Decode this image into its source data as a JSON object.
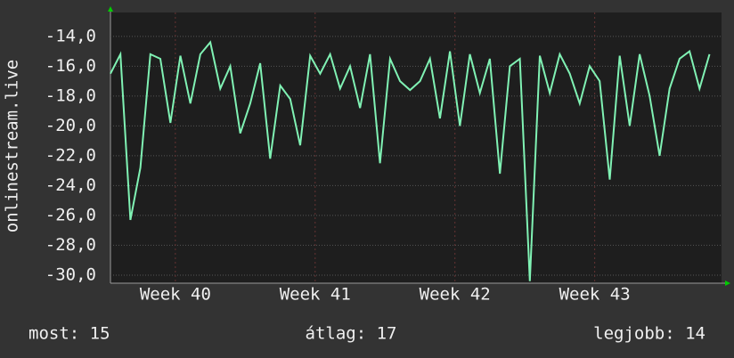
{
  "chart_data": {
    "type": "line",
    "y_label": "onlinestream.live",
    "x": [
      0,
      0.5,
      1,
      1.5,
      2,
      2.5,
      3,
      3.5,
      4,
      4.5,
      5,
      5.5,
      6,
      6.5,
      7,
      7.5,
      8,
      8.5,
      9,
      9.5,
      10,
      10.5,
      11,
      11.5,
      12,
      12.5,
      13,
      13.5,
      14,
      14.5,
      15,
      15.5,
      16,
      16.5,
      17,
      17.5,
      18,
      18.5,
      19,
      19.5,
      20,
      20.5,
      21,
      21.5,
      22,
      22.5,
      23,
      23.5,
      24,
      24.5,
      25,
      25.5,
      26,
      26.5,
      27,
      27.5,
      28,
      28.5,
      29,
      29.5,
      30
    ],
    "values": [
      -16.5,
      -15.2,
      -26.3,
      -22.8,
      -15.2,
      -15.5,
      -19.8,
      -15.3,
      -18.5,
      -15.2,
      -14.4,
      -17.5,
      -16.0,
      -20.5,
      -18.5,
      -15.8,
      -22.2,
      -17.3,
      -18.2,
      -21.3,
      -15.3,
      -16.5,
      -15.2,
      -17.5,
      -16.0,
      -18.8,
      -15.2,
      -22.5,
      -15.5,
      -17.0,
      -17.6,
      -17.0,
      -15.5,
      -19.5,
      -15.0,
      -20.0,
      -15.2,
      -17.8,
      -15.5,
      -23.2,
      -16.0,
      -15.5,
      -30.4,
      -15.3,
      -17.8,
      -15.2,
      -16.5,
      -18.5,
      -16.0,
      -17.0,
      -23.6,
      -15.3,
      -20.0,
      -15.2,
      -18.0,
      -22.0,
      -17.5,
      -15.5,
      -15.0,
      -17.5,
      -15.2
    ],
    "color": "#80f2b4",
    "xlim": [
      0,
      30.6
    ],
    "xticks": [
      {
        "value": 3.25,
        "label": "Week 40"
      },
      {
        "value": 10.25,
        "label": "Week 41"
      },
      {
        "value": 17.25,
        "label": "Week 42"
      },
      {
        "value": 24.25,
        "label": "Week 43"
      }
    ],
    "ylim": [
      -30.54,
      -12.4
    ],
    "yticks": [
      {
        "value": -30,
        "label": "-30,0"
      },
      {
        "value": -28,
        "label": "-28,0"
      },
      {
        "value": -26,
        "label": "-26,0"
      },
      {
        "value": -24,
        "label": "-24,0"
      },
      {
        "value": -22,
        "label": "-22,0"
      },
      {
        "value": -20,
        "label": "-20,0"
      },
      {
        "value": -18,
        "label": "-18,0"
      },
      {
        "value": -16,
        "label": "-16,0"
      },
      {
        "value": -14,
        "label": "-14,0"
      }
    ],
    "grid": true,
    "footer": [
      "most: 15",
      "átlag: 17",
      "legjobb: 14"
    ]
  }
}
